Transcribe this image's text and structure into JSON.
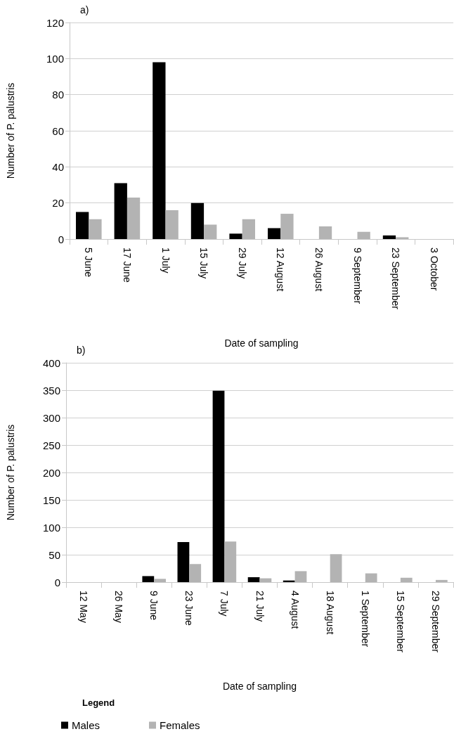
{
  "chart_data": [
    {
      "type": "bar",
      "title": "a)",
      "xlabel": "Date of sampling",
      "ylabel": "Number of P. palustris",
      "categories": [
        "5 June",
        "17 June",
        "1 July",
        "15 July",
        "29 July",
        "12 August",
        "26 August",
        "9 September",
        "23 September",
        "3 October"
      ],
      "series": [
        {
          "color": "#000000",
          "values": [
            15,
            31,
            98,
            20,
            3,
            6,
            0,
            0,
            2,
            0
          ]
        },
        {
          "color": "#b3b3b3",
          "values": [
            11,
            23,
            16,
            8,
            11,
            14,
            7,
            4,
            1,
            0
          ]
        }
      ],
      "ylim": [
        0,
        120
      ],
      "yticks": [
        0,
        20,
        40,
        60,
        80,
        100,
        120
      ],
      "grid": "y",
      "legend": false
    },
    {
      "type": "bar",
      "title": "b)",
      "xlabel": "Date of sampling",
      "ylabel": "Number of P. palustris",
      "legend_title": "Legend",
      "categories": [
        "12 May",
        "26 May",
        "9 June",
        "23 June",
        "7 July",
        "21 July",
        "4 August",
        "18 August",
        "1 September",
        "15 September",
        "29 September"
      ],
      "series": [
        {
          "name": "Males",
          "color": "#000000",
          "values": [
            0,
            0,
            11,
            73,
            349,
            9,
            3,
            0,
            0,
            0,
            0
          ]
        },
        {
          "name": "Females",
          "color": "#b3b3b3",
          "values": [
            0,
            0,
            6,
            33,
            74,
            7,
            20,
            51,
            16,
            8,
            4
          ]
        }
      ],
      "ylim": [
        0,
        400
      ],
      "yticks": [
        0,
        50,
        100,
        150,
        200,
        250,
        300,
        350,
        400
      ],
      "grid": "y",
      "legend": "bottom left"
    }
  ]
}
